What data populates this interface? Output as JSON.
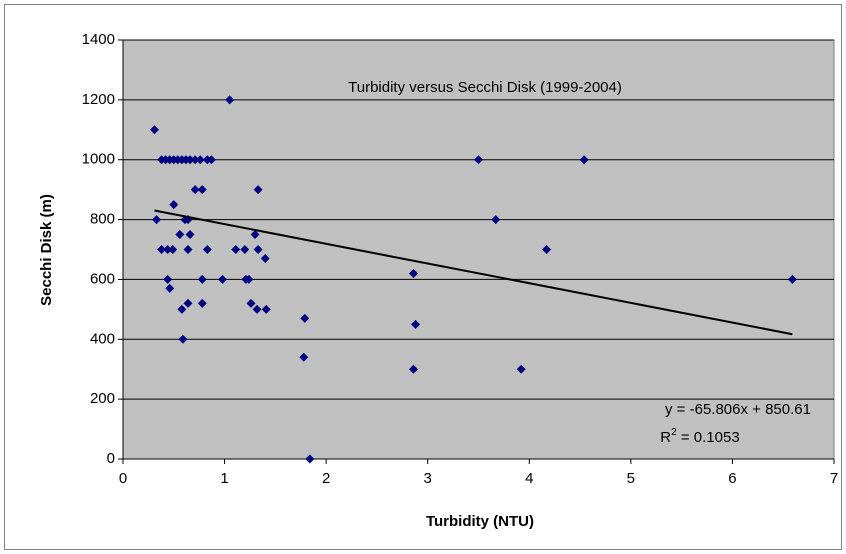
{
  "chart_data": {
    "type": "scatter",
    "title": "Turbidity versus Secchi Disk (1999-2004)",
    "x_label": "Turbidity (NTU)",
    "y_label": "Secchi Disk (m)",
    "color": "#000080",
    "background": "#c0c0c0",
    "grid": true,
    "x": [
      0.31,
      0.33,
      0.38,
      0.42,
      0.46,
      0.5,
      0.54,
      0.58,
      0.62,
      0.66,
      0.71,
      0.76,
      0.83,
      0.87,
      0.38,
      0.44,
      0.49,
      0.44,
      0.46,
      0.5,
      0.56,
      0.66,
      0.61,
      0.64,
      0.64,
      0.58,
      0.59,
      0.64,
      0.71,
      0.78,
      0.78,
      0.78,
      0.83,
      0.98,
      1.05,
      1.11,
      1.2,
      1.21,
      1.24,
      1.26,
      1.3,
      1.33,
      1.33,
      1.32,
      1.41,
      1.4,
      1.79,
      1.78,
      1.84,
      2.86,
      2.88,
      2.86,
      3.5,
      3.67,
      3.92,
      4.17,
      4.54,
      6.59
    ],
    "values": [
      1100,
      800,
      1000,
      1000,
      1000,
      1000,
      1000,
      1000,
      1000,
      1000,
      1000,
      1000,
      1000,
      1000,
      700,
      700,
      700,
      600,
      570,
      850,
      750,
      750,
      800,
      800,
      700,
      500,
      400,
      520,
      900,
      900,
      600,
      520,
      700,
      600,
      1200,
      700,
      700,
      600,
      600,
      520,
      750,
      700,
      900,
      500,
      500,
      670,
      470,
      340,
      0,
      620,
      450,
      300,
      1000,
      800,
      300,
      700,
      1000,
      600
    ],
    "xlim": [
      0,
      7
    ],
    "xticks": [
      0,
      1,
      2,
      3,
      4,
      5,
      6,
      7
    ],
    "ylim": [
      0,
      1400
    ],
    "yticks": [
      0,
      200,
      400,
      600,
      800,
      1000,
      1200,
      1400
    ],
    "trendline": {
      "slope": -65.806,
      "intercept": 850.61,
      "color": "#000000",
      "equation": "y = -65.806x + 850.61",
      "r_squared": {
        "prefix": "R",
        "sup": "2",
        "rest": " = 0.1053"
      }
    }
  }
}
